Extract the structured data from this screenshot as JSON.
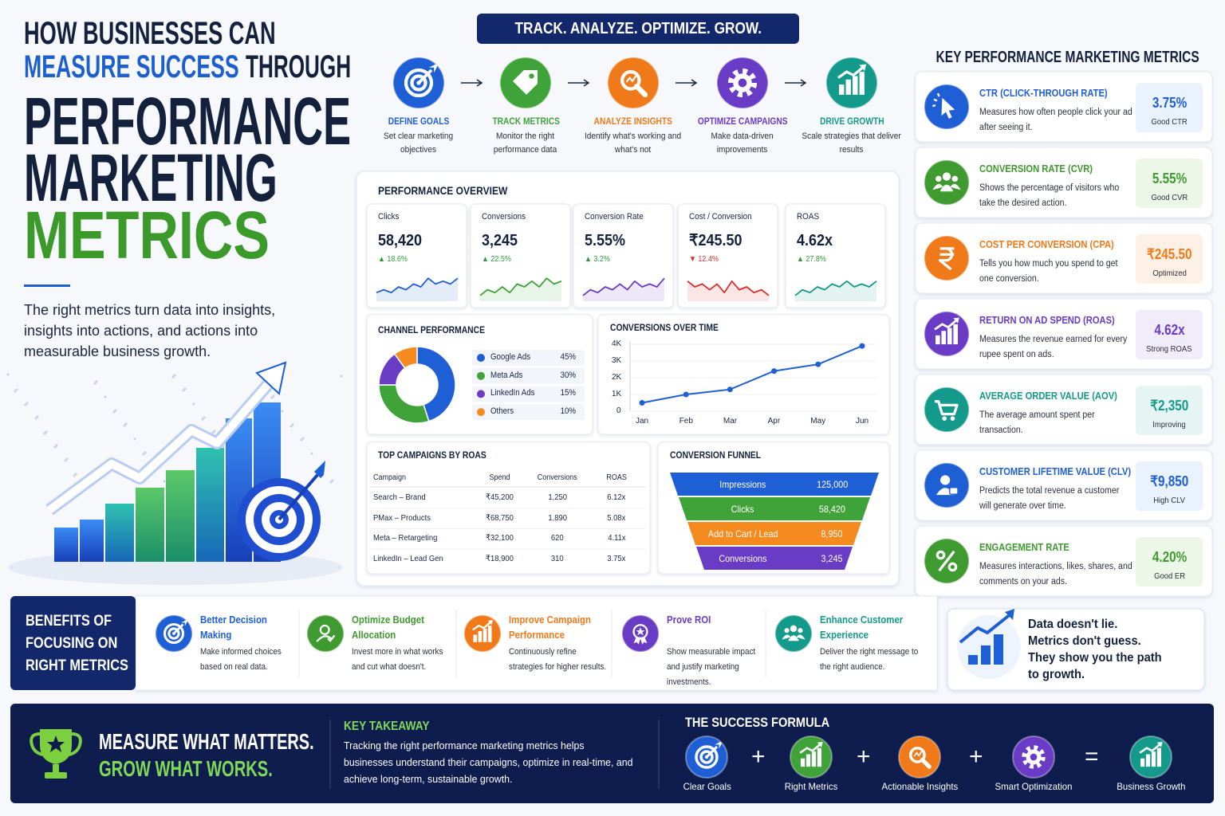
{
  "header": {
    "line1": "HOW BUSINESSES CAN",
    "line2_highlight": "MEASURE SUCCESS",
    "line2_rest": "THROUGH",
    "big1": "PERFORMANCE",
    "big2": "MARKETING",
    "big3": "METRICS",
    "intro": "The right metrics turn data into insights, insights into actions, and actions into measurable business growth."
  },
  "process": {
    "banner": "TRACK. ANALYZE. OPTIMIZE. GROW.",
    "steps": [
      {
        "title": "DEFINE GOALS",
        "desc": "Set clear marketing objectives",
        "color": "#1f5fd6"
      },
      {
        "title": "TRACK METRICS",
        "desc": "Monitor the right performance data",
        "color": "#3fa33a"
      },
      {
        "title": "ANALYZE INSIGHTS",
        "desc": "Identify what's working and what's not",
        "color": "#f07a1a"
      },
      {
        "title": "OPTIMIZE CAMPAIGNS",
        "desc": "Make data-driven improvements",
        "color": "#6a3bc4"
      },
      {
        "title": "DRIVE GROWTH",
        "desc": "Scale strategies that deliver results",
        "color": "#149a8a"
      }
    ]
  },
  "overview": {
    "title": "PERFORMANCE OVERVIEW",
    "kpis": [
      {
        "label": "Clicks",
        "value": "58,420",
        "change": "▲ 18.6%",
        "color": "#1f5fd6",
        "change_color": "#2e9a3a",
        "trend": [
          3,
          4,
          3,
          5,
          4,
          6,
          5,
          8,
          6,
          7,
          6,
          8
        ]
      },
      {
        "label": "Conversions",
        "value": "3,245",
        "change": "▲ 22.5%",
        "color": "#3fa33a",
        "change_color": "#2e9a3a",
        "trend": [
          2,
          4,
          3,
          5,
          3,
          6,
          5,
          7,
          5,
          8,
          6,
          7
        ]
      },
      {
        "label": "Conversion Rate",
        "value": "5.55%",
        "change": "▲ 3.2%",
        "color": "#6a3bc4",
        "change_color": "#2e9a3a",
        "trend": [
          2,
          4,
          3,
          5,
          4,
          6,
          4,
          7,
          5,
          6,
          5,
          8
        ]
      },
      {
        "label": "Cost / Conversion",
        "value": "₹245.50",
        "change": "▼ 12.4%",
        "color": "#e02b2b",
        "change_color": "#e02b2b",
        "trend": [
          7,
          5,
          6,
          4,
          6,
          3,
          7,
          4,
          5,
          3,
          4,
          2
        ]
      },
      {
        "label": "ROAS",
        "value": "4.62x",
        "change": "▲ 27.8%",
        "color": "#149a8a",
        "change_color": "#2e9a3a",
        "trend": [
          2,
          4,
          3,
          5,
          4,
          6,
          5,
          7,
          5,
          6,
          5,
          7
        ]
      }
    ]
  },
  "chart_data": [
    {
      "type": "pie",
      "title": "CHANNEL PERFORMANCE",
      "categories": [
        "Google Ads",
        "Meta Ads",
        "LinkedIn Ads",
        "Others"
      ],
      "values": [
        45,
        30,
        15,
        10
      ],
      "value_labels": [
        "45%",
        "30%",
        "15%",
        "10%"
      ],
      "colors": [
        "#1f5fd6",
        "#3fa33a",
        "#6a3bc4",
        "#f58a1f"
      ]
    },
    {
      "type": "line",
      "title": "CONVERSIONS OVER TIME",
      "categories": [
        "Jan",
        "Feb",
        "Mar",
        "Apr",
        "May",
        "Jun"
      ],
      "values": [
        500,
        1000,
        1300,
        2400,
        2800,
        3900
      ],
      "color": "#1f5fd6",
      "ylim": [
        0,
        4000
      ],
      "yticks": [
        0,
        {
          "value": 1000,
          "label": "1K"
        },
        {
          "value": 2000,
          "label": "2K"
        },
        {
          "value": 3000,
          "label": "3K"
        },
        {
          "value": 4000,
          "label": "4K"
        }
      ],
      "grid": true
    }
  ],
  "campaigns": {
    "title": "TOP CAMPAIGNS BY ROAS",
    "header": [
      "Campaign",
      "Spend",
      "Conversions",
      "ROAS"
    ],
    "rows": [
      [
        "Search – Brand",
        "₹45,200",
        "1,250",
        "6.12x"
      ],
      [
        "PMax – Products",
        "₹68,750",
        "1,890",
        "5.08x"
      ],
      [
        "Meta – Retargeting",
        "₹32,100",
        "620",
        "4.11x"
      ],
      [
        "LinkedIn – Lead Gen",
        "₹18,900",
        "310",
        "3.75x"
      ]
    ]
  },
  "funnel": {
    "title": "CONVERSION FUNNEL",
    "stages": [
      {
        "label": "Impressions",
        "value": "125,000",
        "color": "#1f5fd6"
      },
      {
        "label": "Clicks",
        "value": "58,420",
        "color": "#3fa33a"
      },
      {
        "label": "Add to Cart / Lead",
        "value": "8,950",
        "color": "#f58a1f"
      },
      {
        "label": "Conversions",
        "value": "3,245",
        "color": "#6a3bc4"
      }
    ]
  },
  "metrics": {
    "title": "KEY PERFORMANCE MARKETING METRICS",
    "cards": [
      {
        "title": "CTR (CLICK-THROUGH RATE)",
        "desc": "Measures how often people click your ad after seeing it.",
        "value": "3.75%",
        "note": "Good CTR",
        "color": "#1f5fd6",
        "tint": "#eaf2fe"
      },
      {
        "title": "CONVERSION RATE (CVR)",
        "desc": "Shows the percentage of visitors who take the desired action.",
        "value": "5.55%",
        "note": "Good CVR",
        "color": "#3f9a2f",
        "tint": "#edf7e8"
      },
      {
        "title": "COST PER CONVERSION (CPA)",
        "desc": "Tells you how much you spend to get one conversion.",
        "value": "₹245.50",
        "note": "Optimized",
        "color": "#f07a1a",
        "tint": "#fdf1e5"
      },
      {
        "title": "RETURN ON AD SPEND (ROAS)",
        "desc": "Measures the revenue earned for every rupee spent on ads.",
        "value": "4.62x",
        "note": "Strong ROAS",
        "color": "#6a3bc4",
        "tint": "#f1ecfa"
      },
      {
        "title": "AVERAGE ORDER VALUE (AOV)",
        "desc": "The average amount spent per transaction.",
        "value": "₹2,350",
        "note": "Improving",
        "color": "#149a8a",
        "tint": "#e6f5f3"
      },
      {
        "title": "CUSTOMER LIFETIME VALUE (CLV)",
        "desc": "Predicts the total revenue a customer will generate over time.",
        "value": "₹9,850",
        "note": "High CLV",
        "color": "#1f5fd6",
        "tint": "#eaf2fe"
      },
      {
        "title": "ENGAGEMENT RATE",
        "desc": "Measures interactions, likes, shares, and comments on your ads.",
        "value": "4.20%",
        "note": "Good ER",
        "color": "#3f9a2f",
        "tint": "#edf7e8"
      }
    ]
  },
  "benefits": {
    "title": "BENEFITS OF FOCUSING ON RIGHT METRICS",
    "items": [
      {
        "title": "Better Decision Making",
        "desc": "Make informed choices based on real data.",
        "color": "#1f5fd6"
      },
      {
        "title": "Optimize Budget Allocation",
        "desc": "Invest more in what works and cut what doesn't.",
        "color": "#3f9a2f"
      },
      {
        "title": "Improve Campaign Performance",
        "desc": "Continuously refine strategies for higher results.",
        "color": "#f07a1a"
      },
      {
        "title": "Prove ROI",
        "desc": "Show measurable impact and justify marketing investments.",
        "color": "#6a3bc4"
      },
      {
        "title": "Enhance Customer Experience",
        "desc": "Deliver the right message to the right audience.",
        "color": "#149a8a"
      }
    ]
  },
  "quote": {
    "lines": [
      "Data doesn't lie.",
      "Metrics don't guess.",
      "They show you the path",
      "to growth."
    ]
  },
  "footer": {
    "slogan1": "MEASURE WHAT MATTERS.",
    "slogan2": "GROW WHAT WORKS.",
    "takeaway_title": "KEY TAKEAWAY",
    "takeaway_text": "Tracking the right performance marketing metrics helps businesses understand their campaigns, optimize in real-time, and achieve long-term, sustainable growth.",
    "formula_title": "THE SUCCESS FORMULA",
    "formula_items": [
      "Clear Goals",
      "Right Metrics",
      "Actionable Insights",
      "Smart Optimization",
      "Business Growth"
    ],
    "operators": [
      "+",
      "+",
      "+",
      "="
    ]
  }
}
